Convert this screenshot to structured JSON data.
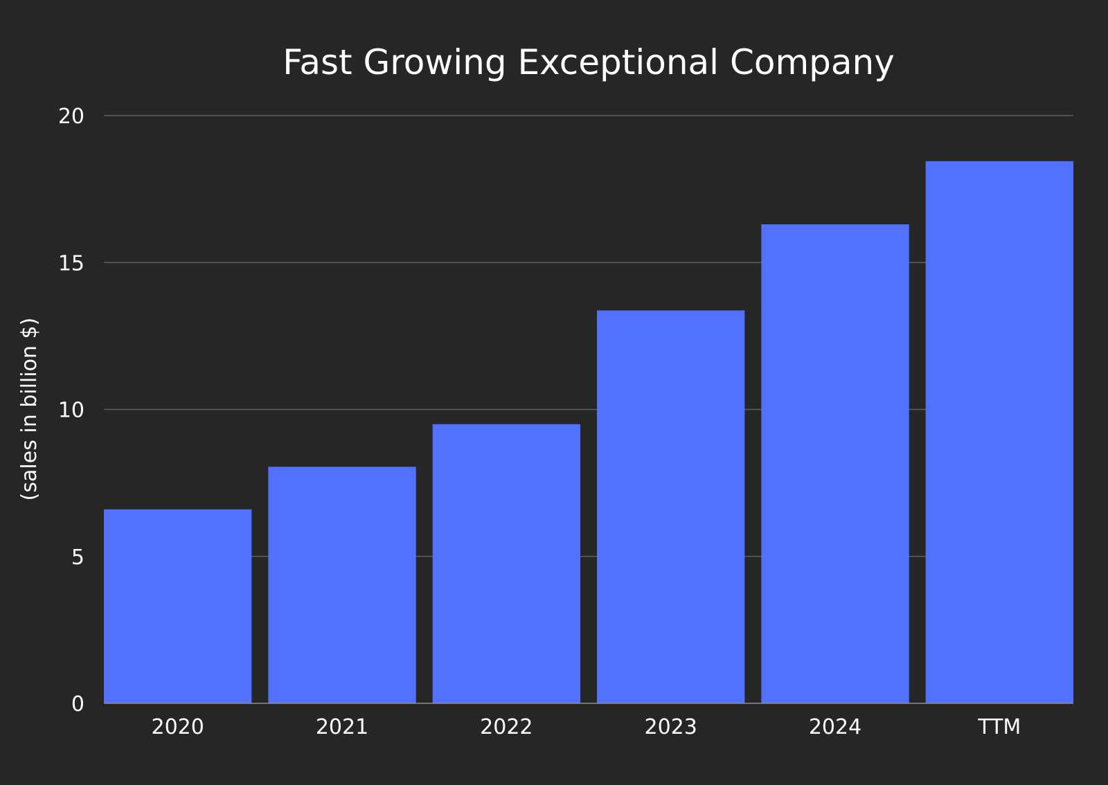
{
  "chart_data": {
    "type": "bar",
    "title": "Fast Growing Exceptional Company",
    "xlabel": "",
    "ylabel": "(sales in billion $)",
    "categories": [
      "2020",
      "2021",
      "2022",
      "2023",
      "2024",
      "TTM"
    ],
    "values": [
      6.6,
      8.05,
      9.5,
      13.37,
      16.3,
      18.45
    ],
    "ylim": [
      0,
      20
    ],
    "yticks": [
      0,
      5,
      10,
      15,
      20
    ],
    "grid": true,
    "legend": "none",
    "colors": {
      "background": "#262626",
      "bar": "#5271ff",
      "text": "#ffffff",
      "grid": "#5e5e5e"
    }
  }
}
